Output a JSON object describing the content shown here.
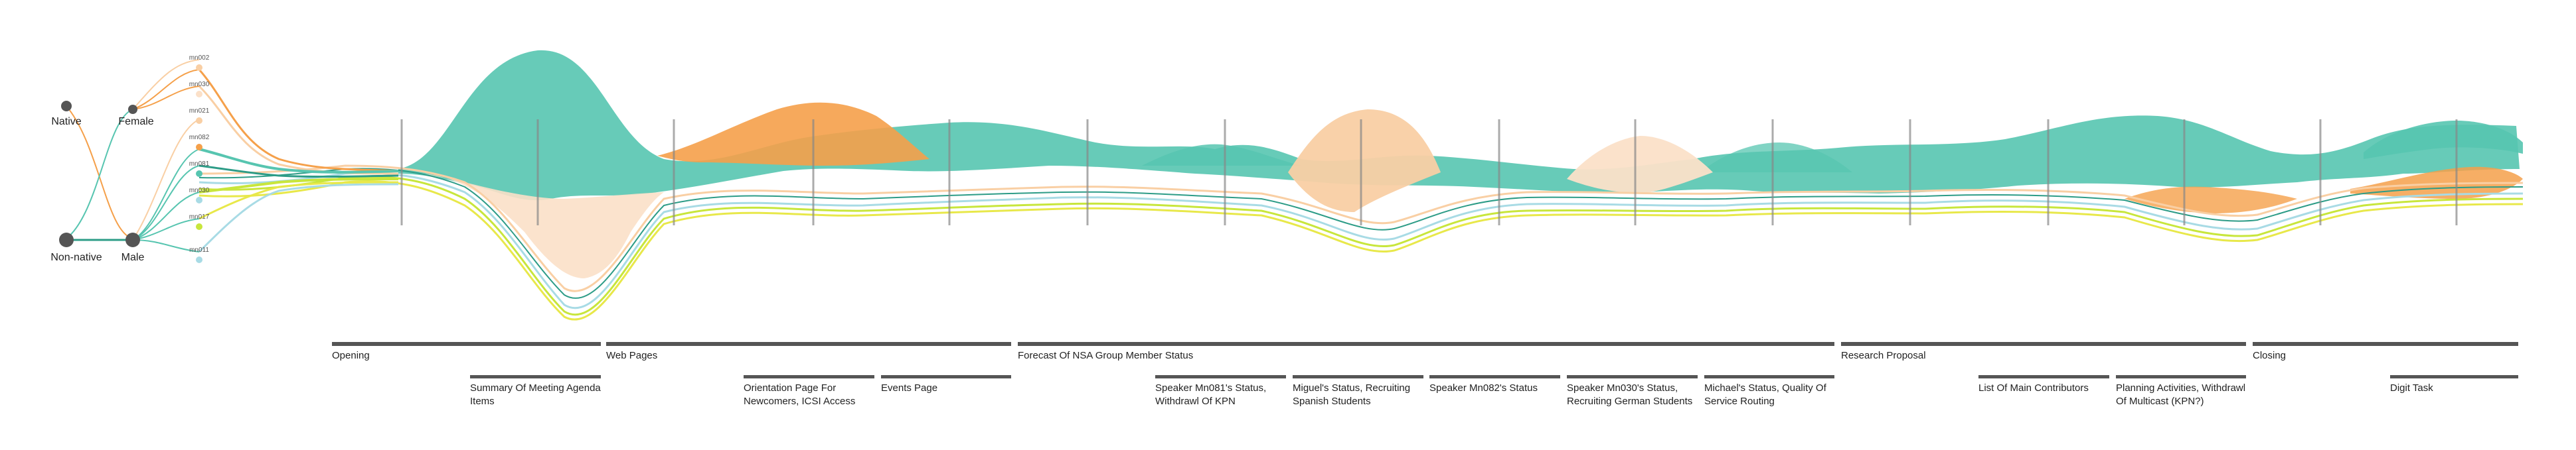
{
  "colors": {
    "teal": "#57c5b0",
    "teal_dark": "#2d9c87",
    "orange": "#f5a04a",
    "orange_light": "#f9cfa4",
    "peach": "#fbe0c8",
    "lime": "#c8e63c",
    "yellow": "#e8e84a",
    "lightblue": "#a8dbe5",
    "grey": "#555555"
  },
  "attributes": {
    "native": "Native",
    "non_native": "Non-native",
    "female": "Female",
    "male": "Male"
  },
  "speakers": [
    "mn002",
    "mn030",
    "mn021",
    "mn082",
    "mn081",
    "mn030",
    "mn017",
    "mn011"
  ],
  "topics": [
    {
      "label": "Opening",
      "subtopics": [
        "Summary Of Meeting Agenda Items"
      ]
    },
    {
      "label": "Web Pages",
      "subtopics": [
        "Orientation Page For Newcomers, ICSI Access",
        "Events Page"
      ]
    },
    {
      "label": "Forecast Of NSA Group Member Status",
      "subtopics": [
        "Speaker Mn081's Status, Withdrawl Of KPN",
        "Miguel's Status, Recruiting Spanish Students",
        "Speaker Mn082's Status",
        "Speaker Mn030's Status, Recruiting German Students",
        "Michael's Status, Quality Of Service Routing"
      ]
    },
    {
      "label": "Research Proposal",
      "subtopics": [
        "List Of Main Contributors",
        "Planning Activities, Withdrawl Of Multicast (KPN?)"
      ]
    },
    {
      "label": "Closing",
      "subtopics": [
        "Digit Task"
      ]
    }
  ]
}
